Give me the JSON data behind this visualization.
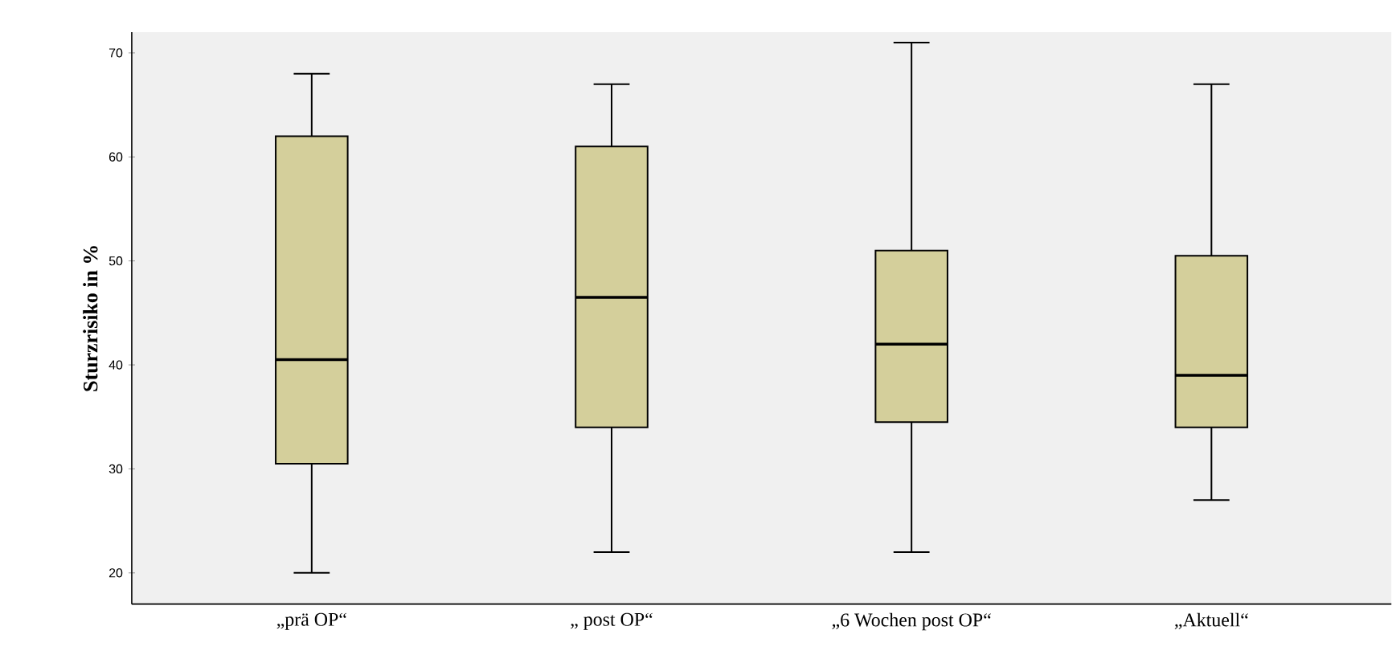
{
  "chart_data": {
    "type": "box",
    "ylabel": "Sturzrisiko in %",
    "categories": [
      "„prä OP“",
      "„ post OP“",
      "„6 Wochen post OP“",
      "„Aktuell“"
    ],
    "boxes": [
      {
        "low": 20,
        "q1": 30.5,
        "median": 40.5,
        "q3": 62,
        "high": 68
      },
      {
        "low": 22,
        "q1": 34,
        "median": 46.5,
        "q3": 61,
        "high": 67
      },
      {
        "low": 22,
        "q1": 34.5,
        "median": 42,
        "q3": 51,
        "high": 71
      },
      {
        "low": 27,
        "q1": 34,
        "median": 39,
        "q3": 50.5,
        "high": 67
      }
    ],
    "color": "#d4cf9b",
    "ylim": [
      17,
      72
    ],
    "yticks": [
      20,
      30,
      40,
      50,
      60,
      70
    ]
  }
}
